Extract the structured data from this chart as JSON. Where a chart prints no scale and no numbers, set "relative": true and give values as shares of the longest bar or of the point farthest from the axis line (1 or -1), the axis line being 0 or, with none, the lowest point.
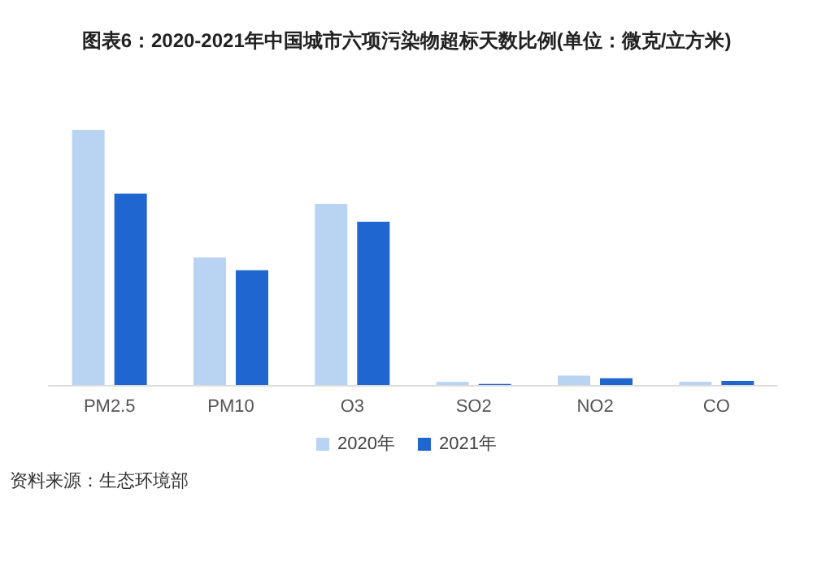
{
  "chart_data": {
    "type": "bar",
    "title": "图表6：2020-2021年中国城市六项污染物超标天数比例(单位：微克/立方米)",
    "categories": [
      "PM2.5",
      "PM10",
      "O3",
      "SO2",
      "NO2",
      "CO"
    ],
    "relative": true,
    "series": [
      {
        "name": "2020年",
        "color": "#b9d3f3",
        "values": [
          1,
          0.5,
          0.71,
          0.012,
          0.037,
          0.013
        ]
      },
      {
        "name": "2021年",
        "color": "#1f66d1",
        "values": [
          0.75,
          0.45,
          0.64,
          0.004,
          0.026,
          0.016
        ]
      }
    ],
    "legend": "bottom",
    "annotations": [
      "资料来源：生态环境部"
    ]
  }
}
